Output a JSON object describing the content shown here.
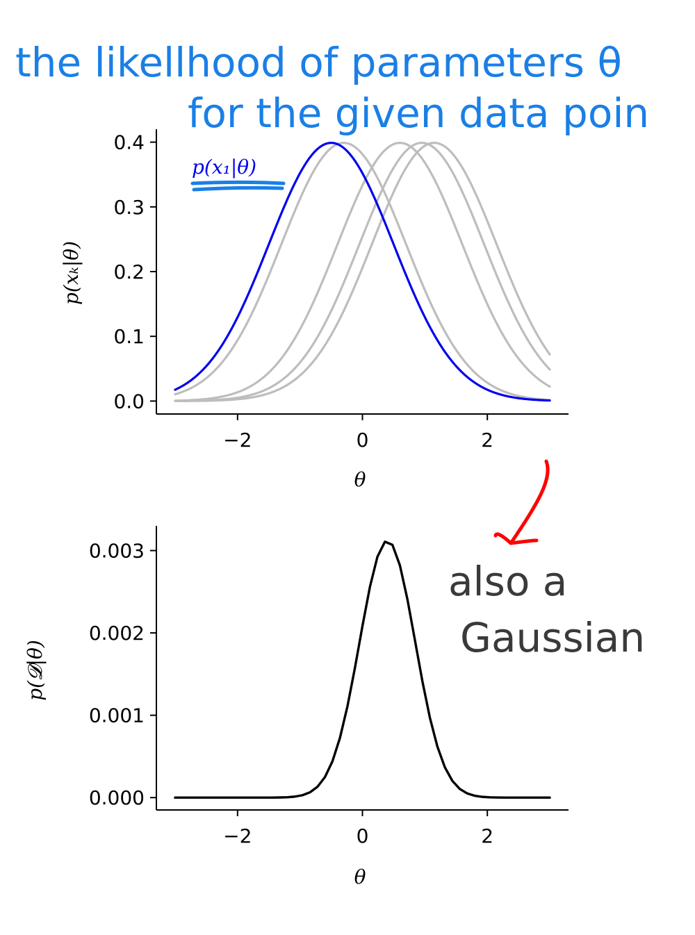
{
  "annotations": {
    "title_line1": "the likellhood of parameters θ",
    "title_line2": "for the given data poin",
    "callout_line1": "also a",
    "callout_line2": "Gaussian",
    "series_label": "p(x₁|θ)"
  },
  "colors": {
    "highlight": "#0000ee",
    "other_curves": "#bdbdbd",
    "posterior": "#000000",
    "handwriting_blue": "#1a7fe6",
    "handwriting_dark": "#3a3a3a",
    "arrow": "#ff0000"
  },
  "chart_data": [
    {
      "type": "line",
      "xlabel": "θ",
      "ylabel": "p(xₖ|θ)",
      "xlim": [
        -3.3,
        3.3
      ],
      "ylim": [
        -0.02,
        0.42
      ],
      "xticks": [
        -2,
        0,
        2
      ],
      "xtick_labels": [
        "−2",
        "0",
        "2"
      ],
      "yticks": [
        0.0,
        0.1,
        0.2,
        0.3,
        0.4
      ],
      "ytick_labels": [
        "0.0",
        "0.1",
        "0.2",
        "0.3",
        "0.4"
      ],
      "grid": false,
      "series": [
        {
          "name": "p(x₁|θ)",
          "kind": "gaussian",
          "mean": -0.5,
          "std": 1.0,
          "color": "#0000ee",
          "x_range": [
            -3,
            3
          ]
        },
        {
          "kind": "gaussian",
          "mean": -0.3,
          "std": 1.0,
          "color": "#bdbdbd",
          "x_range": [
            -3,
            3
          ]
        },
        {
          "kind": "gaussian",
          "mean": 0.6,
          "std": 1.0,
          "color": "#bdbdbd",
          "x_range": [
            -3,
            3
          ]
        },
        {
          "kind": "gaussian",
          "mean": 0.95,
          "std": 1.0,
          "color": "#bdbdbd",
          "x_range": [
            -3,
            3
          ]
        },
        {
          "kind": "gaussian",
          "mean": 1.15,
          "std": 1.0,
          "color": "#bdbdbd",
          "x_range": [
            -3,
            3
          ]
        }
      ]
    },
    {
      "type": "line",
      "xlabel": "θ",
      "ylabel": "p(𝓓|θ)",
      "xlim": [
        -3.3,
        3.3
      ],
      "ylim": [
        -0.00015,
        0.0033
      ],
      "xticks": [
        -2,
        0,
        2
      ],
      "xtick_labels": [
        "−2",
        "0",
        "2"
      ],
      "yticks": [
        0.0,
        0.001,
        0.002,
        0.003
      ],
      "ytick_labels": [
        "0.000",
        "0.001",
        "0.002",
        "0.003"
      ],
      "grid": false,
      "series": [
        {
          "kind": "gaussian",
          "mean": 0.4,
          "std": 0.445,
          "peak": 0.00312,
          "color": "#000000",
          "x_range": [
            -3,
            3
          ],
          "samples": 50
        }
      ]
    }
  ]
}
